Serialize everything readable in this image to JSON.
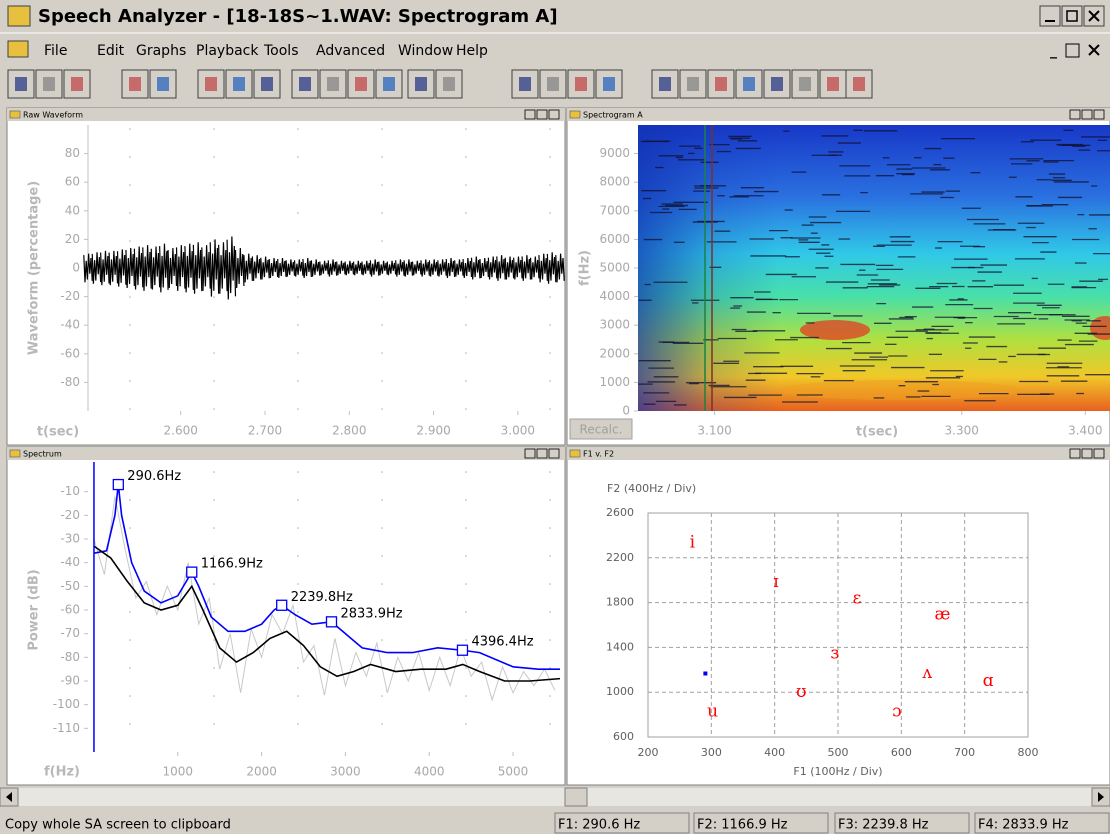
{
  "window": {
    "title": "Speech Analyzer - [18-18S~1.WAV: Spectrogram A]",
    "menu": [
      "File",
      "Edit",
      "Graphs",
      "Playback",
      "Tools",
      "Advanced",
      "Window",
      "Help"
    ]
  },
  "chart_data": [
    {
      "type": "waveform",
      "title": "Raw Waveform",
      "ylabel": "Waveform (percentage)",
      "xlabel": "t(sec)",
      "xlim": [
        2.49,
        3.05
      ],
      "ylim": [
        -100,
        100
      ],
      "yticks": [
        -80,
        -60,
        -40,
        -20,
        0,
        20,
        40,
        60,
        80
      ],
      "xticks": [
        {
          "value": 2.6,
          "label": "2.600"
        },
        {
          "value": 2.7,
          "label": "2.700"
        },
        {
          "value": 2.8,
          "label": "2.800"
        },
        {
          "value": 2.9,
          "label": "2.900"
        },
        {
          "value": 3.0,
          "label": "3.000"
        }
      ],
      "color": "#000000",
      "x": [
        2.49,
        2.5,
        2.51,
        2.52,
        2.53,
        2.54,
        2.55,
        2.56,
        2.57,
        2.58,
        2.59,
        2.6,
        2.61,
        2.62,
        2.63,
        2.64,
        2.65,
        2.66,
        2.67,
        2.68,
        2.69,
        2.7,
        2.71,
        2.72,
        2.73,
        2.74,
        2.75,
        2.76,
        2.77,
        2.78,
        2.79,
        2.8,
        2.81,
        2.82,
        2.83,
        2.84,
        2.85,
        2.86,
        2.87,
        2.88,
        2.89,
        2.9,
        2.91,
        2.92,
        2.93,
        2.94,
        2.95,
        2.96,
        2.97,
        2.98,
        2.99,
        3.0,
        3.01,
        3.02,
        3.03,
        3.04,
        3.05
      ],
      "values": [
        10,
        11,
        12,
        12,
        13,
        14,
        15,
        16,
        15,
        17,
        14,
        16,
        17,
        18,
        16,
        20,
        18,
        22,
        14,
        10,
        9,
        8,
        7,
        7,
        6,
        6,
        7,
        6,
        5,
        6,
        5,
        5,
        5,
        5,
        6,
        5,
        5,
        6,
        6,
        5,
        6,
        6,
        6,
        7,
        6,
        7,
        8,
        7,
        8,
        9,
        8,
        8,
        9,
        8,
        10,
        11,
        10
      ]
    },
    {
      "type": "spectrogram",
      "title": "Spectrogram A",
      "ylabel": "f(Hz)",
      "xlabel": "t(sec)",
      "button": "Recalc.",
      "xlim": [
        3.038,
        3.42
      ],
      "ylim": [
        0,
        10000
      ],
      "yticks": [
        0,
        1000,
        2000,
        3000,
        4000,
        5000,
        6000,
        7000,
        8000,
        9000
      ],
      "xticks": [
        {
          "value": 3.1,
          "label": "3.100"
        },
        {
          "value": 3.3,
          "label": "3.300"
        },
        {
          "value": 3.4,
          "label": "3.400"
        }
      ]
    },
    {
      "type": "spectrum",
      "title": "Spectrum",
      "ylabel": "Power (dB)",
      "xlabel": "f(Hz)",
      "xlim": [
        -71,
        5560
      ],
      "ylim": [
        -120,
        0
      ],
      "yticks": [
        -110,
        -100,
        -90,
        -80,
        -70,
        -60,
        -50,
        -40,
        -30,
        -20,
        -10
      ],
      "xticks": [
        1000,
        2000,
        3000,
        4000,
        5000
      ],
      "cursor": 0,
      "series": [
        {
          "color": "#c8c8c8",
          "x": [
            0,
            125,
            250,
            375,
            500,
            625,
            750,
            875,
            1000,
            1125,
            1250,
            1375,
            1500,
            1625,
            1750,
            1875,
            2000,
            2125,
            2250,
            2375,
            2500,
            2625,
            2750,
            2875,
            3000,
            3125,
            3250,
            3375,
            3500,
            3625,
            3750,
            3875,
            4000,
            4125,
            4250,
            4375,
            4500,
            4625,
            4750,
            4875,
            5000,
            5125,
            5250,
            5375,
            5500
          ],
          "values": [
            -30,
            -45,
            -12,
            -35,
            -55,
            -48,
            -62,
            -50,
            -60,
            -40,
            -66,
            -55,
            -85,
            -70,
            -95,
            -68,
            -80,
            -62,
            -70,
            -58,
            -82,
            -75,
            -96,
            -72,
            -92,
            -78,
            -88,
            -74,
            -95,
            -80,
            -90,
            -78,
            -94,
            -80,
            -92,
            -76,
            -88,
            -82,
            -98,
            -84,
            -95,
            -86,
            -92,
            -85,
            -94
          ]
        },
        {
          "color": "#0000ff",
          "x": [
            0,
            150,
            250,
            290.6,
            330,
            450,
            600,
            800,
            1000,
            1100,
            1166.9,
            1250,
            1400,
            1600,
            1800,
            2000,
            2150,
            2239.8,
            2400,
            2600,
            2833.9,
            3000,
            3200,
            3500,
            3800,
            4100,
            4396.4,
            4600,
            5000,
            5300,
            5560
          ],
          "values": [
            -36,
            -35,
            -20,
            -7,
            -20,
            -40,
            -52,
            -57,
            -54,
            -48,
            -44,
            -50,
            -63,
            -69,
            -69,
            -66,
            -60,
            -58,
            -62,
            -66,
            -65,
            -70,
            -76,
            -78,
            -78,
            -76,
            -77,
            -78,
            -84,
            -85,
            -85
          ]
        },
        {
          "color": "#000000",
          "x": [
            0,
            200,
            400,
            600,
            800,
            1000,
            1166.9,
            1300,
            1500,
            1700,
            1900,
            2100,
            2300,
            2500,
            2700,
            2900,
            3100,
            3300,
            3600,
            3900,
            4200,
            4400,
            4600,
            4900,
            5200,
            5560
          ],
          "values": [
            -33,
            -38,
            -48,
            -57,
            -60,
            -58,
            -50,
            -60,
            -76,
            -82,
            -78,
            -72,
            -69,
            -75,
            -84,
            -88,
            -86,
            -83,
            -86,
            -85,
            -85,
            -83,
            -86,
            -90,
            -90,
            -89
          ]
        }
      ],
      "peaks": {
        "color": "#0000ff",
        "x": [
          290.6,
          1166.9,
          2239.8,
          2833.9,
          4396.4
        ],
        "values": [
          -7,
          -44,
          -58,
          -65,
          -77
        ],
        "value_labels": [
          "290.6Hz",
          "1166.9Hz",
          "2239.8Hz",
          "2833.9Hz",
          "4396.4Hz"
        ]
      }
    },
    {
      "type": "formant",
      "title": "F1 v. F2",
      "xlabel": "F1 (100Hz / Div)",
      "ylabel": "F2 (400Hz / Div)",
      "xlim": [
        200,
        800
      ],
      "ylim": [
        600,
        2600
      ],
      "xticks": [
        200,
        300,
        400,
        500,
        600,
        700,
        800
      ],
      "yticks": [
        600,
        1000,
        1400,
        1800,
        2200,
        2600
      ],
      "grid": true,
      "vowels": {
        "color": "#ff0000",
        "x": [
          270,
          402,
          530,
          665,
          495,
          641,
          737,
          442,
          302,
          593
        ],
        "values": [
          2330,
          1978,
          1834,
          1690,
          1340,
          1167,
          1095,
          996,
          825,
          825
        ],
        "labels": [
          "i",
          "ɪ",
          "ɛ",
          "æ",
          "ɜ",
          "ʌ",
          "ɑ",
          "ʊ",
          "u",
          "ɔ"
        ]
      },
      "current": {
        "color": "#0000ff",
        "x": 290.6,
        "value": 1166.9
      }
    }
  ],
  "status": {
    "message": "Copy whole SA screen to clipboard",
    "fields": [
      "F1: 290.6 Hz",
      "F2: 1166.9 Hz",
      "F3: 2239.8 Hz",
      "F4: 2833.9 Hz"
    ]
  }
}
